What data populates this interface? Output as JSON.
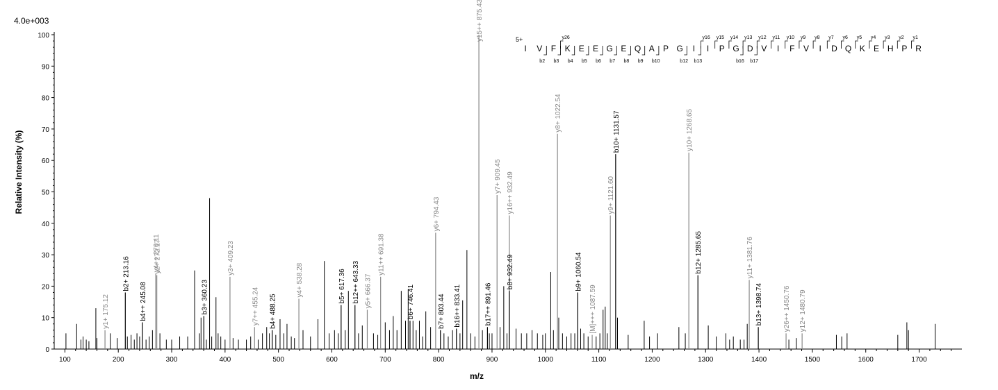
{
  "chart_data": {
    "type": "bar",
    "scale_label": "4.0e+003",
    "xlabel": "m/z",
    "ylabel": "Relative   Intensity (%)",
    "xlim": [
      80,
      1780
    ],
    "ylim": [
      0,
      100
    ],
    "x_ticks": [
      "100",
      "200",
      "300",
      "400",
      "500",
      "600",
      "700",
      "800",
      "900",
      "1000",
      "1100",
      "1200",
      "1300",
      "1400",
      "1500",
      "1600",
      "1700"
    ],
    "y_ticks": [
      "0",
      "10",
      "20",
      "30",
      "40",
      "50",
      "60",
      "70",
      "80",
      "90",
      "100"
    ],
    "peptide": {
      "charge": "5+",
      "sequence": [
        "I",
        "V",
        "F",
        "K",
        "E",
        "E",
        "G",
        "E",
        "Q",
        "A",
        "P",
        "G",
        "I",
        "I",
        "P",
        "G",
        "D",
        "V",
        "I",
        "F",
        "V",
        "I",
        "D",
        "Q",
        "K",
        "E",
        "H",
        "P",
        "R"
      ],
      "y_ions": [
        {
          "after": 3,
          "label": "y26"
        },
        {
          "after": 13,
          "label": "y16"
        },
        {
          "after": 14,
          "label": "y15"
        },
        {
          "after": 15,
          "label": "y14"
        },
        {
          "after": 16,
          "label": "y13"
        },
        {
          "after": 17,
          "label": "y12"
        },
        {
          "after": 18,
          "label": "y11"
        },
        {
          "after": 19,
          "label": "y10"
        },
        {
          "after": 20,
          "label": "y9"
        },
        {
          "after": 21,
          "label": "y8"
        },
        {
          "after": 22,
          "label": "y7"
        },
        {
          "after": 23,
          "label": "y6"
        },
        {
          "after": 24,
          "label": "y5"
        },
        {
          "after": 25,
          "label": "y4"
        },
        {
          "after": 26,
          "label": "y3"
        },
        {
          "after": 27,
          "label": "y2"
        },
        {
          "after": 28,
          "label": "y1"
        }
      ],
      "b_ions": [
        {
          "after": 2,
          "label": "b2"
        },
        {
          "after": 3,
          "label": "b3"
        },
        {
          "after": 4,
          "label": "b4"
        },
        {
          "after": 5,
          "label": "b5"
        },
        {
          "after": 6,
          "label": "b6"
        },
        {
          "after": 7,
          "label": "b7"
        },
        {
          "after": 8,
          "label": "b8"
        },
        {
          "after": 9,
          "label": "b9"
        },
        {
          "after": 10,
          "label": "b10"
        },
        {
          "after": 12,
          "label": "b12"
        },
        {
          "after": 13,
          "label": "b13"
        },
        {
          "after": 16,
          "label": "b16"
        },
        {
          "after": 17,
          "label": "b17"
        }
      ]
    },
    "annotated_peaks": [
      {
        "mz": 175.12,
        "intensity": 6,
        "ion": "y",
        "label": "y1+ 175.12"
      },
      {
        "mz": 213.16,
        "intensity": 18,
        "ion": "b",
        "label": "b2+ 213.16"
      },
      {
        "mz": 245.08,
        "intensity": 8.5,
        "ion": "b",
        "label": "b4++ 245.08"
      },
      {
        "mz": 270.11,
        "intensity": 24,
        "ion": "y",
        "label": "y4++ 270.11"
      },
      {
        "mz": 272.17,
        "intensity": 23.5,
        "ion": "y",
        "label": "y2+ 272.17"
      },
      {
        "mz": 360.23,
        "intensity": 10.5,
        "ion": "b",
        "label": "b3+ 360.23"
      },
      {
        "mz": 409.23,
        "intensity": 23,
        "ion": "y",
        "label": "y3+ 409.23"
      },
      {
        "mz": 455.24,
        "intensity": 7,
        "ion": "y",
        "label": "y7++ 455.24"
      },
      {
        "mz": 488.25,
        "intensity": 6,
        "ion": "b",
        "label": "b4+ 488.25"
      },
      {
        "mz": 538.28,
        "intensity": 16,
        "ion": "y",
        "label": "y4+ 538.28"
      },
      {
        "mz": 617.36,
        "intensity": 14,
        "ion": "b",
        "label": "b5+ 617.36"
      },
      {
        "mz": 643.33,
        "intensity": 14,
        "ion": "b",
        "label": "b12++ 643.33"
      },
      {
        "mz": 666.37,
        "intensity": 12.5,
        "ion": "y",
        "label": "y5+ 666.37"
      },
      {
        "mz": 691.38,
        "intensity": 23,
        "ion": "y",
        "label": "y11++ 691.38"
      },
      {
        "mz": 746.41,
        "intensity": 9,
        "ion": "b",
        "label": "b6+ 746.41"
      },
      {
        "mz": 794.43,
        "intensity": 37,
        "ion": "y",
        "label": "y6+ 794.43"
      },
      {
        "mz": 803.44,
        "intensity": 6,
        "ion": "b",
        "label": "b7+ 803.44"
      },
      {
        "mz": 833.41,
        "intensity": 6.5,
        "ion": "b",
        "label": "b16++ 833.41"
      },
      {
        "mz": 875.43,
        "intensity": 100,
        "ion": "y",
        "label": "y15++ 875.43"
      },
      {
        "mz": 891.46,
        "intensity": 7,
        "ion": "b",
        "label": "b17++ 891.46"
      },
      {
        "mz": 909.45,
        "intensity": 49,
        "ion": "y",
        "label": "y7+ 909.45"
      },
      {
        "mz": 932.49,
        "intensity": 42.5,
        "ion": "y",
        "label": "y16++ 932.49"
      },
      {
        "mz": 932.49,
        "intensity": 18.5,
        "ion": "b",
        "label": "b8+ 932.49"
      },
      {
        "mz": 1022.54,
        "intensity": 68.5,
        "ion": "y",
        "label": "y8+ 1022.54"
      },
      {
        "mz": 1060.54,
        "intensity": 18,
        "ion": "b",
        "label": "b9+ 1060.54"
      },
      {
        "mz": 1087.59,
        "intensity": 4.5,
        "ion": "y",
        "label": "[M]+++ 1087.59"
      },
      {
        "mz": 1121.6,
        "intensity": 42.5,
        "ion": "y",
        "label": "y9+ 1121.60"
      },
      {
        "mz": 1131.57,
        "intensity": 62,
        "ion": "b",
        "label": "b10+ 1131.57"
      },
      {
        "mz": 1268.65,
        "intensity": 62.5,
        "ion": "y",
        "label": "y10+ 1268.65"
      },
      {
        "mz": 1285.65,
        "intensity": 23.5,
        "ion": "b",
        "label": "b12+ 1285.65"
      },
      {
        "mz": 1381.76,
        "intensity": 22,
        "ion": "y",
        "label": "y11+ 1381.76"
      },
      {
        "mz": 1398.74,
        "intensity": 7,
        "ion": "b",
        "label": "b13+ 1398.74"
      },
      {
        "mz": 1450.76,
        "intensity": 5,
        "ion": "y",
        "label": "y26++ 1450.76"
      },
      {
        "mz": 1480.79,
        "intensity": 5,
        "ion": "y",
        "label": "y12+ 1480.79"
      }
    ],
    "other_peaks": [
      {
        "mz": 102,
        "intensity": 5
      },
      {
        "mz": 122,
        "intensity": 8
      },
      {
        "mz": 130,
        "intensity": 3
      },
      {
        "mz": 134,
        "intensity": 4
      },
      {
        "mz": 140,
        "intensity": 3
      },
      {
        "mz": 145,
        "intensity": 2.5
      },
      {
        "mz": 158,
        "intensity": 13
      },
      {
        "mz": 160,
        "intensity": 3.5
      },
      {
        "mz": 185,
        "intensity": 5
      },
      {
        "mz": 198,
        "intensity": 3.5
      },
      {
        "mz": 217,
        "intensity": 4
      },
      {
        "mz": 224,
        "intensity": 4.5
      },
      {
        "mz": 230,
        "intensity": 3
      },
      {
        "mz": 235,
        "intensity": 5
      },
      {
        "mz": 240,
        "intensity": 4
      },
      {
        "mz": 252,
        "intensity": 3
      },
      {
        "mz": 258,
        "intensity": 4
      },
      {
        "mz": 264,
        "intensity": 6
      },
      {
        "mz": 278,
        "intensity": 5
      },
      {
        "mz": 290,
        "intensity": 3
      },
      {
        "mz": 300,
        "intensity": 3
      },
      {
        "mz": 315,
        "intensity": 4
      },
      {
        "mz": 330,
        "intensity": 4
      },
      {
        "mz": 343,
        "intensity": 25
      },
      {
        "mz": 352,
        "intensity": 5
      },
      {
        "mz": 355,
        "intensity": 10
      },
      {
        "mz": 365,
        "intensity": 3
      },
      {
        "mz": 371,
        "intensity": 48
      },
      {
        "mz": 375,
        "intensity": 4
      },
      {
        "mz": 383,
        "intensity": 16.5
      },
      {
        "mz": 387,
        "intensity": 5
      },
      {
        "mz": 392,
        "intensity": 4
      },
      {
        "mz": 400,
        "intensity": 3
      },
      {
        "mz": 415,
        "intensity": 3.5
      },
      {
        "mz": 425,
        "intensity": 3
      },
      {
        "mz": 440,
        "intensity": 3
      },
      {
        "mz": 448,
        "intensity": 4
      },
      {
        "mz": 462,
        "intensity": 3
      },
      {
        "mz": 470,
        "intensity": 5
      },
      {
        "mz": 478,
        "intensity": 7
      },
      {
        "mz": 483,
        "intensity": 5
      },
      {
        "mz": 495,
        "intensity": 4.5
      },
      {
        "mz": 503,
        "intensity": 9.5
      },
      {
        "mz": 510,
        "intensity": 5
      },
      {
        "mz": 516,
        "intensity": 8
      },
      {
        "mz": 524,
        "intensity": 4
      },
      {
        "mz": 530,
        "intensity": 3.5
      },
      {
        "mz": 546,
        "intensity": 6
      },
      {
        "mz": 560,
        "intensity": 4
      },
      {
        "mz": 574,
        "intensity": 9.5
      },
      {
        "mz": 586,
        "intensity": 28
      },
      {
        "mz": 595,
        "intensity": 5
      },
      {
        "mz": 605,
        "intensity": 6
      },
      {
        "mz": 612,
        "intensity": 5
      },
      {
        "mz": 625,
        "intensity": 6
      },
      {
        "mz": 631,
        "intensity": 18.5
      },
      {
        "mz": 650,
        "intensity": 5
      },
      {
        "mz": 657,
        "intensity": 7.5
      },
      {
        "mz": 678,
        "intensity": 5
      },
      {
        "mz": 686,
        "intensity": 4.5
      },
      {
        "mz": 700,
        "intensity": 8.5
      },
      {
        "mz": 708,
        "intensity": 6
      },
      {
        "mz": 715,
        "intensity": 10.5
      },
      {
        "mz": 722,
        "intensity": 6
      },
      {
        "mz": 730,
        "intensity": 18.5
      },
      {
        "mz": 738,
        "intensity": 9
      },
      {
        "mz": 743,
        "intensity": 19
      },
      {
        "mz": 752,
        "intensity": 9
      },
      {
        "mz": 758,
        "intensity": 6
      },
      {
        "mz": 764,
        "intensity": 9
      },
      {
        "mz": 770,
        "intensity": 4
      },
      {
        "mz": 776,
        "intensity": 12
      },
      {
        "mz": 785,
        "intensity": 7
      },
      {
        "mz": 810,
        "intensity": 5
      },
      {
        "mz": 818,
        "intensity": 4
      },
      {
        "mz": 826,
        "intensity": 6
      },
      {
        "mz": 840,
        "intensity": 5
      },
      {
        "mz": 845,
        "intensity": 15.5
      },
      {
        "mz": 853,
        "intensity": 31.5
      },
      {
        "mz": 860,
        "intensity": 5
      },
      {
        "mz": 868,
        "intensity": 4
      },
      {
        "mz": 882,
        "intensity": 6
      },
      {
        "mz": 895,
        "intensity": 5
      },
      {
        "mz": 900,
        "intensity": 5
      },
      {
        "mz": 915,
        "intensity": 7
      },
      {
        "mz": 922,
        "intensity": 20
      },
      {
        "mz": 928,
        "intensity": 5
      },
      {
        "mz": 945,
        "intensity": 6.5
      },
      {
        "mz": 955,
        "intensity": 5
      },
      {
        "mz": 965,
        "intensity": 5
      },
      {
        "mz": 975,
        "intensity": 6
      },
      {
        "mz": 985,
        "intensity": 5
      },
      {
        "mz": 995,
        "intensity": 4.5
      },
      {
        "mz": 1000,
        "intensity": 5
      },
      {
        "mz": 1010,
        "intensity": 24.5
      },
      {
        "mz": 1015,
        "intensity": 6
      },
      {
        "mz": 1025,
        "intensity": 10
      },
      {
        "mz": 1032,
        "intensity": 5
      },
      {
        "mz": 1040,
        "intensity": 4
      },
      {
        "mz": 1048,
        "intensity": 5
      },
      {
        "mz": 1055,
        "intensity": 5
      },
      {
        "mz": 1066,
        "intensity": 6.5
      },
      {
        "mz": 1072,
        "intensity": 5
      },
      {
        "mz": 1080,
        "intensity": 4
      },
      {
        "mz": 1095,
        "intensity": 4
      },
      {
        "mz": 1102,
        "intensity": 5
      },
      {
        "mz": 1108,
        "intensity": 12.5
      },
      {
        "mz": 1112,
        "intensity": 13.5
      },
      {
        "mz": 1116,
        "intensity": 5
      },
      {
        "mz": 1135,
        "intensity": 10
      },
      {
        "mz": 1155,
        "intensity": 4.5
      },
      {
        "mz": 1185,
        "intensity": 9
      },
      {
        "mz": 1195,
        "intensity": 4
      },
      {
        "mz": 1210,
        "intensity": 5
      },
      {
        "mz": 1250,
        "intensity": 7
      },
      {
        "mz": 1262,
        "intensity": 5
      },
      {
        "mz": 1305,
        "intensity": 7.5
      },
      {
        "mz": 1320,
        "intensity": 4
      },
      {
        "mz": 1338,
        "intensity": 5
      },
      {
        "mz": 1345,
        "intensity": 3
      },
      {
        "mz": 1352,
        "intensity": 4
      },
      {
        "mz": 1365,
        "intensity": 3
      },
      {
        "mz": 1372,
        "intensity": 3
      },
      {
        "mz": 1378,
        "intensity": 8
      },
      {
        "mz": 1456,
        "intensity": 3
      },
      {
        "mz": 1470,
        "intensity": 3.5
      },
      {
        "mz": 1545,
        "intensity": 4.5
      },
      {
        "mz": 1555,
        "intensity": 4
      },
      {
        "mz": 1565,
        "intensity": 5
      },
      {
        "mz": 1660,
        "intensity": 4.5
      },
      {
        "mz": 1677,
        "intensity": 8.5
      },
      {
        "mz": 1680,
        "intensity": 6
      },
      {
        "mz": 1730,
        "intensity": 8
      }
    ],
    "colors": {
      "b_ion": "#000000",
      "y_ion": "#888888",
      "unassigned": "#000000",
      "axis": "#000000"
    }
  }
}
